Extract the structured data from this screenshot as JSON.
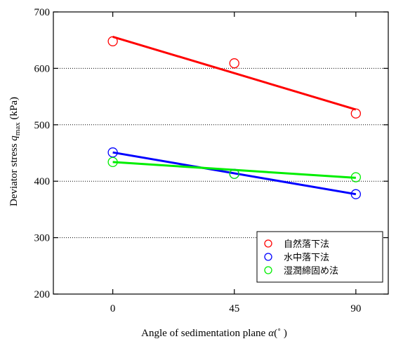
{
  "chart_data": {
    "type": "scatter",
    "title": "",
    "xlabel": "Angle of sedimentation plane",
    "xlabel_symbol": "α",
    "xlabel_unit": "(˚ )",
    "ylabel": "Deviator stress ",
    "ylabel_symbol": "q",
    "ylabel_sub": "max",
    "ylabel_unit": " (kPa)",
    "xlim": [
      -22,
      102
    ],
    "ylim": [
      200,
      700
    ],
    "xticks": [
      0,
      45,
      90
    ],
    "yticks": [
      200,
      300,
      400,
      500,
      600,
      700
    ],
    "ygrid": [
      300,
      400,
      500,
      600
    ],
    "grid": "horizontal dotted",
    "legend_position": "bottom-right",
    "series": [
      {
        "name": "自然落下法",
        "color": "#ff0000",
        "x": [
          0,
          45,
          90
        ],
        "y": [
          648,
          609,
          520
        ],
        "fit": [
          [
            0,
            656
          ],
          [
            90,
            527
          ]
        ]
      },
      {
        "name": "水中落下法",
        "color": "#0000ff",
        "x": [
          0,
          45,
          90
        ],
        "y": [
          451,
          413,
          377
        ],
        "fit": [
          [
            0,
            451
          ],
          [
            90,
            377
          ]
        ]
      },
      {
        "name": "湿潤締固め法",
        "color": "#00ee00",
        "x": [
          0,
          45,
          90
        ],
        "y": [
          434,
          413,
          407
        ],
        "fit": [
          [
            0,
            434
          ],
          [
            90,
            406
          ]
        ]
      }
    ]
  }
}
